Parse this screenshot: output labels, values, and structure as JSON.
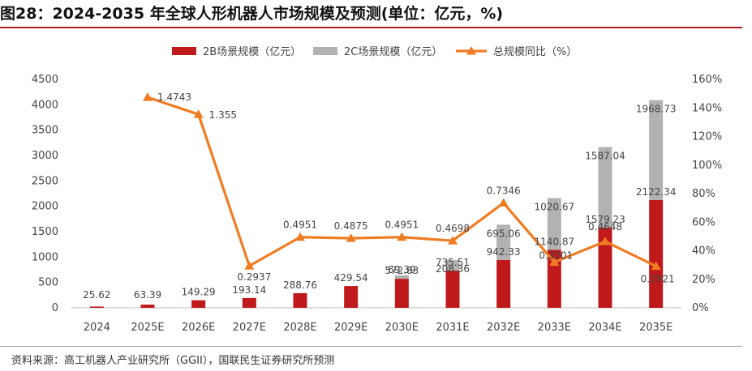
{
  "title": "图28：2024-2035 年全球人形机器人市场规模及预测(单位：亿元，%)",
  "source": "资料来源：高工机器人产业研究所（GGII），国联民生证券研究所预测",
  "colors": {
    "bar2B": "#c0191c",
    "bar2C": "#b3b1b1",
    "line": "#f07c22",
    "accent": "#b01c1c"
  },
  "chart_data": {
    "type": "bar",
    "categories": [
      "2024",
      "2025E",
      "2026E",
      "2027E",
      "2028E",
      "2029E",
      "2030E",
      "2031E",
      "2032E",
      "2033E",
      "2034E",
      "2035E"
    ],
    "series": [
      {
        "name": "2B场景规模（亿元）",
        "type": "bar",
        "stack": true,
        "values": [
          25.62,
          63.39,
          149.29,
          193.14,
          288.76,
          429.54,
          572.83,
          735.51,
          942.33,
          1140.87,
          1579.23,
          2122.34
        ],
        "labels": [
          "25.62",
          "63.39",
          "149.29",
          "193.14",
          "288.76",
          "429.54",
          "572.83",
          "735.51",
          "942.33",
          "1140.87",
          "1579.23",
          "2122.34"
        ]
      },
      {
        "name": "2C场景规模（亿元）",
        "type": "bar",
        "stack": true,
        "values": [
          0,
          0,
          0,
          0,
          0,
          0,
          69.39,
          208.36,
          695.06,
          1020.67,
          1587.04,
          1968.73
        ],
        "labels": [
          "",
          "",
          "",
          "",
          "",
          "",
          "69.39",
          "208.36",
          "695.06",
          "1020.67",
          "1587.04",
          "1968.73"
        ]
      },
      {
        "name": "总规模同比（%）",
        "type": "line",
        "axis": "right",
        "values": [
          null,
          147.43,
          135.5,
          29.37,
          49.51,
          48.75,
          49.51,
          46.98,
          73.46,
          32.01,
          46.48,
          29.21
        ],
        "labels": [
          "",
          "1.4743",
          "1.355",
          "0.2937",
          "0.4951",
          "0.4875",
          "0.4951",
          "0.4698",
          "0.7346",
          "0.3201",
          "0.4648",
          "0.2921"
        ]
      }
    ],
    "left_axis": {
      "min": 0,
      "max": 4500,
      "step": 500,
      "ticks": [
        "0",
        "500",
        "1000",
        "1500",
        "2000",
        "2500",
        "3000",
        "3500",
        "4000",
        "4500"
      ]
    },
    "right_axis": {
      "min": 0,
      "max": 160,
      "step": 20,
      "ticks": [
        "0%",
        "20%",
        "40%",
        "60%",
        "80%",
        "100%",
        "120%",
        "140%",
        "160%"
      ]
    },
    "legend": [
      "2B场景规模（亿元）",
      "2C场景规模（亿元）",
      "总规模同比（%）"
    ],
    "legend_position": "top",
    "grid": false
  }
}
